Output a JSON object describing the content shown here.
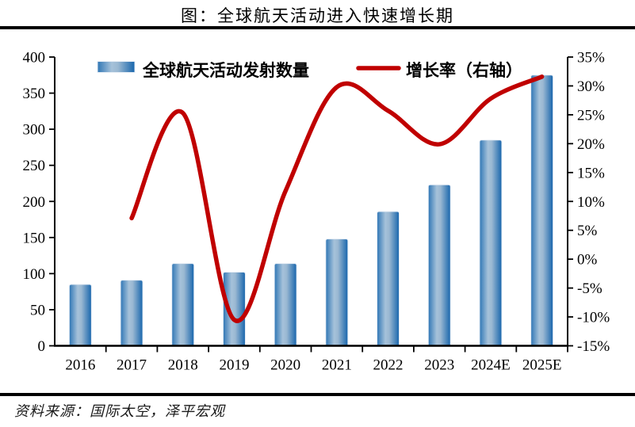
{
  "title": "图：全球航天活动进入快速增长期",
  "source": "资料来源：国际太空，泽平宏观",
  "legend": {
    "bars_label": "全球航天活动发射数量",
    "line_label": "增长率（右轴）"
  },
  "colors": {
    "bar_edge_dark": "#1765AC",
    "bar_edge": "#2F76B5",
    "bar_light": "#A6C2DA",
    "bar_outline": "#E7EEF6",
    "line": "#C00000",
    "axis": "#000000"
  },
  "chart_data": {
    "type": "bar",
    "title": "图：全球航天活动进入快速增长期",
    "categories": [
      "2016",
      "2017",
      "2018",
      "2019",
      "2020",
      "2021",
      "2022",
      "2023",
      "2024E",
      "2025E"
    ],
    "series": [
      {
        "name": "全球航天活动发射数量",
        "type": "bar",
        "axis": "left",
        "values": [
          85,
          91,
          114,
          102,
          114,
          148,
          186,
          223,
          285,
          375
        ]
      },
      {
        "name": "增长率（右轴）",
        "type": "line",
        "axis": "right",
        "values_pct": [
          null,
          7.1,
          25.3,
          -10.5,
          11.8,
          29.8,
          25.7,
          19.9,
          27.8,
          31.6
        ]
      }
    ],
    "left_axis": {
      "min": 0,
      "max": 400,
      "step": 50,
      "tick_labels": [
        "0",
        "50",
        "100",
        "150",
        "200",
        "250",
        "300",
        "350",
        "400"
      ]
    },
    "right_axis": {
      "min": -15,
      "max": 35,
      "step": 5,
      "tick_labels": [
        "-15%",
        "-10%",
        "-5%",
        "0%",
        "5%",
        "10%",
        "15%",
        "20%",
        "25%",
        "30%",
        "35%"
      ]
    },
    "legend_position": "top",
    "grid": false
  }
}
